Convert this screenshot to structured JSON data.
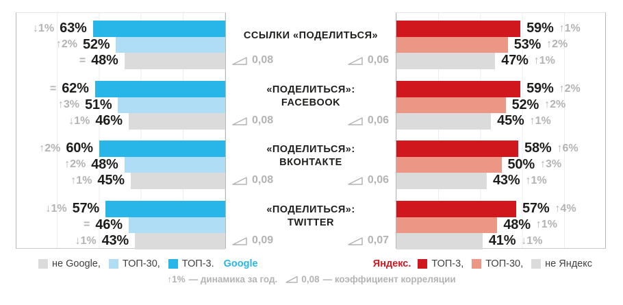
{
  "colors": {
    "google_top3": "#28b5e8",
    "google_top30": "#aeddf5",
    "neutral": "#dbdbdb",
    "yandex_top3": "#d1171e",
    "yandex_top30": "#ec9685",
    "muted_text": "#b3b3b3",
    "text": "#1d1d1b"
  },
  "chart_data": {
    "type": "bar",
    "orientation": "horizontal-mirrored",
    "unit": "%",
    "axis_max": 100,
    "grid_step_percent": 20,
    "left_side": "Google",
    "right_side": "Яндекс",
    "groups": [
      {
        "title_lines": [
          "ССЫЛКИ «ПОДЕЛИТЬСЯ»"
        ],
        "google": {
          "rows": [
            {
              "series": "ТОП-3",
              "value": 63,
              "change": "↓1%"
            },
            {
              "series": "ТОП-30",
              "value": 52,
              "change": "↑2%"
            },
            {
              "series": "не Google",
              "value": 48,
              "change": "="
            }
          ],
          "correlation": "0,08"
        },
        "yandex": {
          "rows": [
            {
              "series": "ТОП-3",
              "value": 59,
              "change": "↑1%"
            },
            {
              "series": "ТОП-30",
              "value": 53,
              "change": "↑2%"
            },
            {
              "series": "не Яндекс",
              "value": 47,
              "change": "↑1%"
            }
          ],
          "correlation": "0,06"
        }
      },
      {
        "title_lines": [
          "«ПОДЕЛИТЬСЯ»:",
          "FACEBOOK"
        ],
        "google": {
          "rows": [
            {
              "series": "ТОП-3",
              "value": 62,
              "change": "="
            },
            {
              "series": "ТОП-30",
              "value": 51,
              "change": "↑3%"
            },
            {
              "series": "не Google",
              "value": 46,
              "change": "↓1%"
            }
          ],
          "correlation": "0,08"
        },
        "yandex": {
          "rows": [
            {
              "series": "ТОП-3",
              "value": 59,
              "change": "↑2%"
            },
            {
              "series": "ТОП-30",
              "value": 52,
              "change": "↑2%"
            },
            {
              "series": "не Яндекс",
              "value": 45,
              "change": "↑1%"
            }
          ],
          "correlation": "0,06"
        }
      },
      {
        "title_lines": [
          "«ПОДЕЛИТЬСЯ»:",
          "ВКОНТАКТЕ"
        ],
        "google": {
          "rows": [
            {
              "series": "ТОП-3",
              "value": 60,
              "change": "↑2%"
            },
            {
              "series": "ТОП-30",
              "value": 48,
              "change": "↑2%"
            },
            {
              "series": "не Google",
              "value": 45,
              "change": "↑1%"
            }
          ],
          "correlation": "0,08"
        },
        "yandex": {
          "rows": [
            {
              "series": "ТОП-3",
              "value": 58,
              "change": "↑6%"
            },
            {
              "series": "ТОП-30",
              "value": 50,
              "change": "↑3%"
            },
            {
              "series": "не Яндекс",
              "value": 43,
              "change": "↑1%"
            }
          ],
          "correlation": "0,06"
        }
      },
      {
        "title_lines": [
          "«ПОДЕЛИТЬСЯ»:",
          "TWITTER"
        ],
        "google": {
          "rows": [
            {
              "series": "ТОП-3",
              "value": 57,
              "change": "↓1%"
            },
            {
              "series": "ТОП-30",
              "value": 46,
              "change": "="
            },
            {
              "series": "не Google",
              "value": 43,
              "change": "↓1%"
            }
          ],
          "correlation": "0,09"
        },
        "yandex": {
          "rows": [
            {
              "series": "ТОП-3",
              "value": 57,
              "change": "↑4%"
            },
            {
              "series": "ТОП-30",
              "value": 48,
              "change": "↑1%"
            },
            {
              "series": "не Яндекс",
              "value": 41,
              "change": "↓1%"
            }
          ],
          "correlation": "0,07"
        }
      }
    ]
  },
  "legend": {
    "google": {
      "items": [
        {
          "label": "не Google,",
          "swatch": "neutral"
        },
        {
          "label": "ТОП-30,",
          "swatch": "google_top30"
        },
        {
          "label": "ТОП-3.",
          "swatch": "google_top3"
        }
      ],
      "engine": "Google"
    },
    "yandex": {
      "engine": "Яндекс.",
      "items": [
        {
          "label": "ТОП-3,",
          "swatch": "yandex_top3"
        },
        {
          "label": "ТОП-30,",
          "swatch": "yandex_top30"
        },
        {
          "label": "не Яндекс",
          "swatch": "neutral"
        }
      ]
    }
  },
  "footnote": {
    "change_example": "↑1%",
    "change_text": "— динамика за год.",
    "corr_example": "0,08",
    "corr_text": "— коэффициент корреляции"
  }
}
